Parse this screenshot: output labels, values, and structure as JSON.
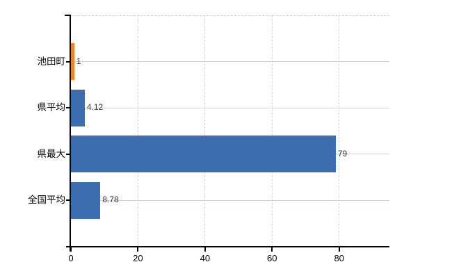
{
  "chart_data": {
    "type": "bar",
    "orientation": "horizontal",
    "title": "",
    "xlabel": "",
    "ylabel": "",
    "categories": [
      "池田町",
      "県平均",
      "県最大",
      "全国平均"
    ],
    "values": [
      1,
      4.12,
      79,
      8.78
    ],
    "value_labels": [
      "1",
      "4.12",
      "79",
      "8.78"
    ],
    "bar_colors": [
      "#ee8328",
      "#3d6db1",
      "#3d6db1",
      "#3d6db1"
    ],
    "highlight_color": "#ee8328",
    "default_color": "#3d6db1",
    "xlim": [
      0,
      95
    ],
    "x_ticks": [
      0,
      20,
      40,
      60,
      80
    ],
    "grid": true,
    "legend": false
  }
}
